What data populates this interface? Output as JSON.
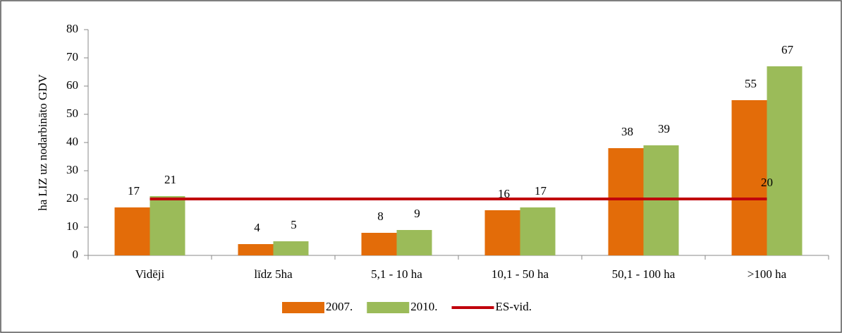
{
  "chart_data": {
    "type": "bar",
    "y_label": "ha LIZ uz nodarbināto GDV",
    "categories": [
      "Vidēji",
      "līdz 5ha",
      "5,1 - 10 ha",
      "10,1 - 50 ha",
      "50,1 - 100 ha",
      ">100 ha"
    ],
    "series": [
      {
        "name": "2007.",
        "color": "#e36c09",
        "values": [
          17,
          4,
          8,
          16,
          38,
          55
        ]
      },
      {
        "name": "2010.",
        "color": "#9bbb59",
        "values": [
          21,
          5,
          9,
          17,
          39,
          67
        ]
      },
      {
        "name": "ES-vid.",
        "type": "line",
        "color": "#c0000b",
        "values": [
          20,
          20,
          20,
          20,
          20,
          20
        ]
      }
    ],
    "ylim": [
      0,
      80
    ],
    "yticks": [
      0,
      10,
      20,
      30,
      40,
      50,
      60,
      70,
      80
    ]
  }
}
